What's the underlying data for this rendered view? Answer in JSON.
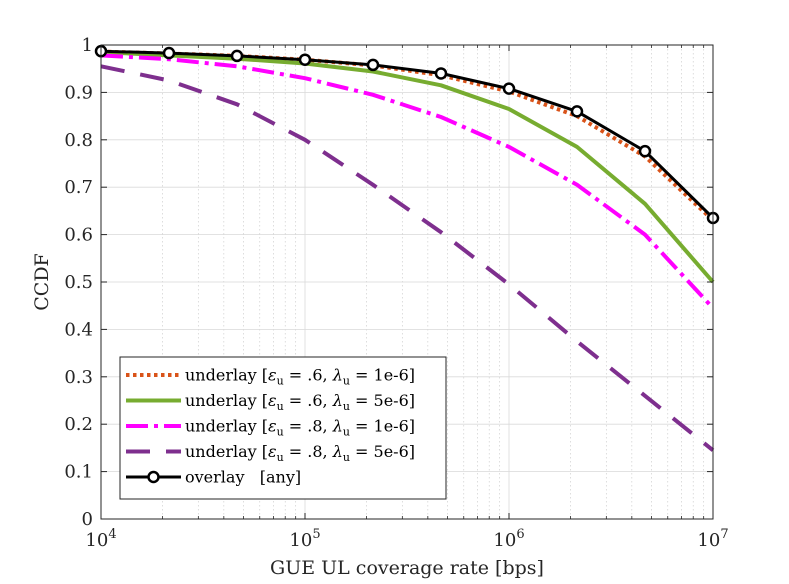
{
  "chart_data": {
    "type": "line",
    "xscale": "log",
    "xlabel": "GUE UL coverage rate [bps]",
    "ylabel": "CCDF",
    "xlim": [
      10000,
      10000000
    ],
    "ylim": [
      0,
      1
    ],
    "x_ticks": [
      {
        "value": 10000,
        "base": "10",
        "exp": "4"
      },
      {
        "value": 100000,
        "base": "10",
        "exp": "5"
      },
      {
        "value": 1000000,
        "base": "10",
        "exp": "6"
      },
      {
        "value": 10000000,
        "base": "10",
        "exp": "7"
      }
    ],
    "y_ticks": [
      {
        "value": 0,
        "label": "0"
      },
      {
        "value": 0.1,
        "label": "0.1"
      },
      {
        "value": 0.2,
        "label": "0.2"
      },
      {
        "value": 0.3,
        "label": "0.3"
      },
      {
        "value": 0.4,
        "label": "0.4"
      },
      {
        "value": 0.5,
        "label": "0.5"
      },
      {
        "value": 0.6,
        "label": "0.6"
      },
      {
        "value": 0.7,
        "label": "0.7"
      },
      {
        "value": 0.8,
        "label": "0.8"
      },
      {
        "value": 0.9,
        "label": "0.9"
      },
      {
        "value": 1,
        "label": "1"
      }
    ],
    "grid": true,
    "legend_position": "bottom-left",
    "x": [
      10000,
      21544,
      46416,
      100000,
      215443,
      464159,
      1000000,
      2154435,
      4641589,
      10000000
    ],
    "series": [
      {
        "name": "underlay-eps06-lam1e6",
        "legend": {
          "pre": "underlay [",
          "eps": "ε",
          "eps_sub": "u",
          "eps_val": " = .6, ",
          "lam": "λ",
          "lam_sub": "u",
          "lam_val": " = 1e-6]"
        },
        "color": "#D95319",
        "style": "dotted",
        "marker": "none",
        "values": [
          0.986,
          0.982,
          0.977,
          0.969,
          0.957,
          0.936,
          0.902,
          0.85,
          0.765,
          0.63
        ]
      },
      {
        "name": "underlay-eps06-lam5e6",
        "legend": {
          "pre": "underlay [",
          "eps": "ε",
          "eps_sub": "u",
          "eps_val": " = .6, ",
          "lam": "λ",
          "lam_sub": "u",
          "lam_val": " = 5e-6]"
        },
        "color": "#77AC30",
        "style": "solid",
        "marker": "none",
        "values": [
          0.985,
          0.978,
          0.971,
          0.961,
          0.944,
          0.915,
          0.865,
          0.785,
          0.665,
          0.5
        ]
      },
      {
        "name": "underlay-eps08-lam1e6",
        "legend": {
          "pre": "underlay [",
          "eps": "ε",
          "eps_sub": "u",
          "eps_val": " = .8, ",
          "lam": "λ",
          "lam_sub": "u",
          "lam_val": " = 1e-6]"
        },
        "color": "#FF00FF",
        "style": "dashdot",
        "marker": "none",
        "values": [
          0.978,
          0.97,
          0.955,
          0.93,
          0.895,
          0.848,
          0.785,
          0.705,
          0.6,
          0.445
        ]
      },
      {
        "name": "underlay-eps08-lam5e6",
        "legend": {
          "pre": "underlay [",
          "eps": "ε",
          "eps_sub": "u",
          "eps_val": " = .8, ",
          "lam": "λ",
          "lam_sub": "u",
          "lam_val": " = 5e-6]"
        },
        "color": "#7E2F8E",
        "style": "dashed",
        "marker": "none",
        "values": [
          0.955,
          0.925,
          0.875,
          0.8,
          0.705,
          0.605,
          0.495,
          0.375,
          0.26,
          0.145
        ]
      },
      {
        "name": "overlay-any",
        "legend": {
          "pre": "overlay   [any]"
        },
        "color": "#000000",
        "style": "solid",
        "marker": "circle",
        "values": [
          0.987,
          0.983,
          0.977,
          0.969,
          0.958,
          0.94,
          0.908,
          0.86,
          0.776,
          0.635
        ]
      }
    ]
  }
}
